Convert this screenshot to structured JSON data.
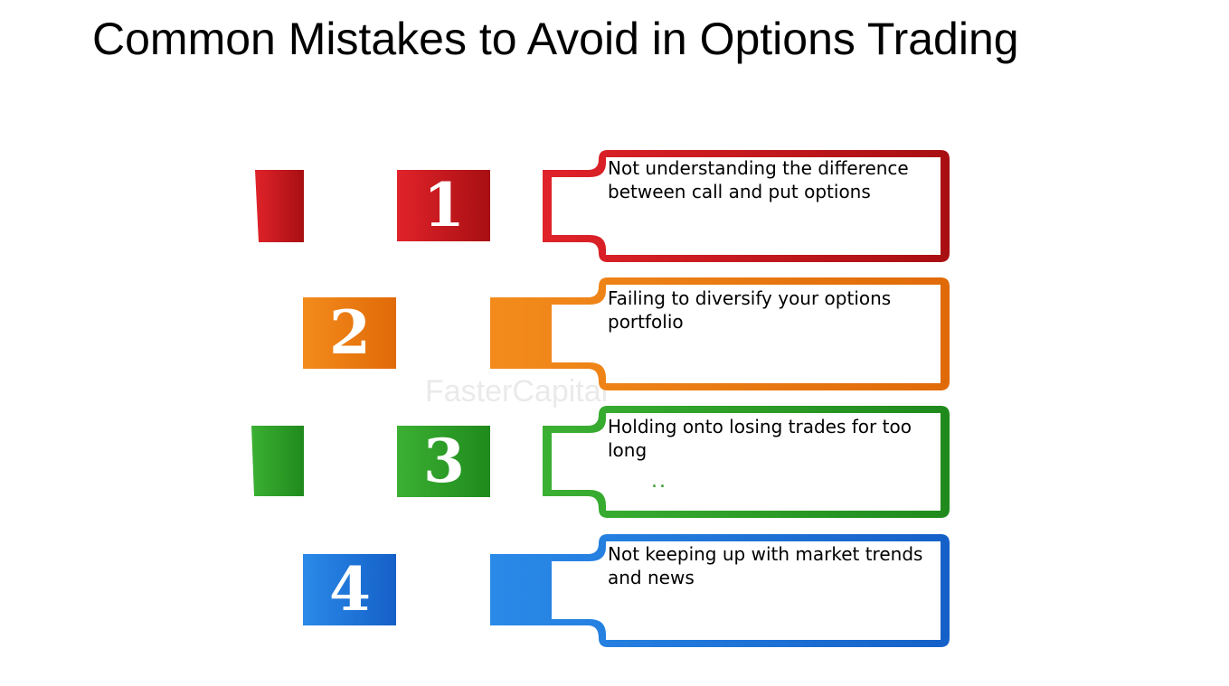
{
  "title": "Common Mistakes to Avoid in Options Trading",
  "watermark": "FasterCapital",
  "items": [
    {
      "number": "1",
      "text": "Not understanding the difference between call and put options",
      "color": "#c8191b"
    },
    {
      "number": "2",
      "text": "Failing to diversify your options portfolio",
      "color": "#ee7a12"
    },
    {
      "number": "3",
      "text": "Holding onto losing trades for too long",
      "color": "#2a9a24",
      "extra": ".."
    },
    {
      "number": "4",
      "text": "Not keeping up with market trends and news",
      "color": "#1a73d9"
    }
  ]
}
